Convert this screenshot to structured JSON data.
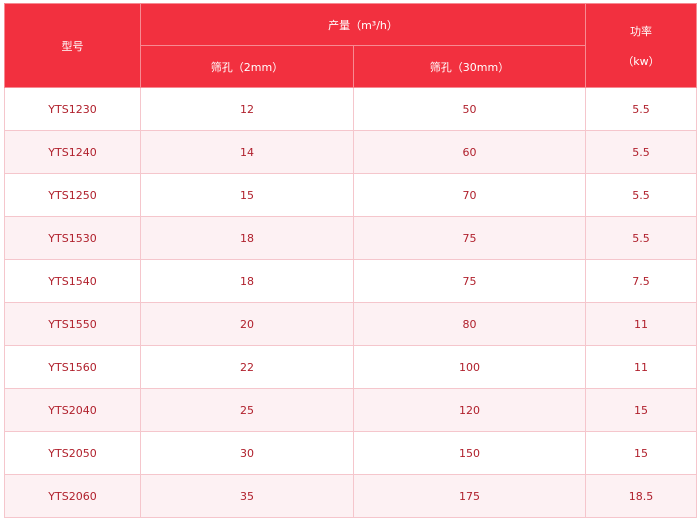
{
  "header": {
    "model": "型号",
    "output": "产量（m³/h）",
    "sieve_2mm": "筛孔（2mm）",
    "sieve_30mm": "筛孔（30mm）",
    "power": "功率",
    "power_unit": "（kw）"
  },
  "rows": [
    {
      "model": "YTS1230",
      "s2": "12",
      "s30": "50",
      "power": "5.5"
    },
    {
      "model": "YTS1240",
      "s2": "14",
      "s30": "60",
      "power": "5.5"
    },
    {
      "model": "YTS1250",
      "s2": "15",
      "s30": "70",
      "power": "5.5"
    },
    {
      "model": "YTS1530",
      "s2": "18",
      "s30": "75",
      "power": "5.5"
    },
    {
      "model": "YTS1540",
      "s2": "18",
      "s30": "75",
      "power": "7.5"
    },
    {
      "model": "YTS1550",
      "s2": "20",
      "s30": "80",
      "power": "11"
    },
    {
      "model": "YTS1560",
      "s2": "22",
      "s30": "100",
      "power": "11"
    },
    {
      "model": "YTS2040",
      "s2": "25",
      "s30": "120",
      "power": "15"
    },
    {
      "model": "YTS2050",
      "s2": "30",
      "s30": "150",
      "power": "15"
    },
    {
      "model": "YTS2060",
      "s2": "35",
      "s30": "175",
      "power": "18.5"
    }
  ]
}
